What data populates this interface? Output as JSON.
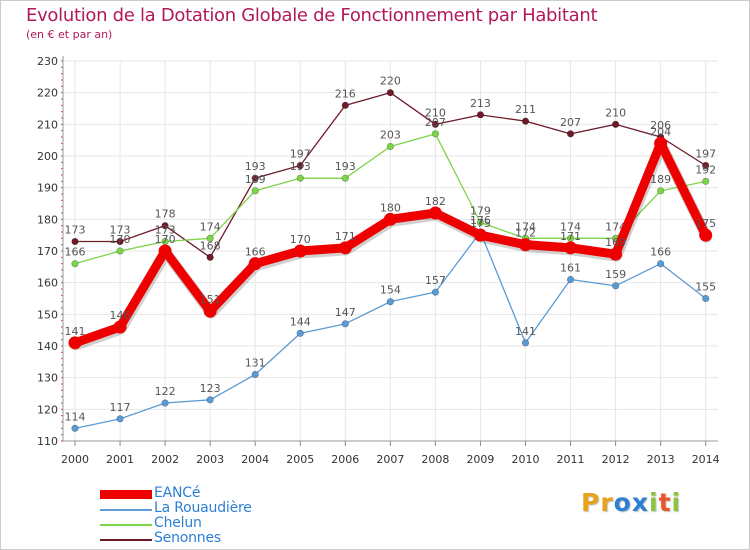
{
  "header": {
    "title": "Evolution de la Dotation Globale de Fonctionnement par Habitant",
    "subtitle": "(en € et par an)"
  },
  "colors": {
    "title": "#b0195a",
    "grid": "#e6e6e6",
    "axis_text": "#333333",
    "label_text": "#555555",
    "legend_text": "#2d7fd4"
  },
  "logo": {
    "letters": [
      "P",
      "r",
      "o",
      "x",
      "i",
      "t",
      "i"
    ],
    "colors": [
      "#e8a21b",
      "#e8a21b",
      "#2d7fd4",
      "#2d7fd4",
      "#8cc63f",
      "#e8562a",
      "#8cc63f"
    ]
  },
  "chart_data": {
    "type": "line",
    "title": "Evolution de la Dotation Globale de Fonctionnement par Habitant",
    "subtitle": "(en € et par an)",
    "xlabel": "",
    "ylabel": "",
    "x": [
      "2000",
      "2001",
      "2002",
      "2003",
      "2004",
      "2005",
      "2006",
      "2007",
      "2008",
      "2009",
      "2010",
      "2011",
      "2012",
      "2013",
      "2014"
    ],
    "ylim": [
      110,
      230
    ],
    "yticks": [
      "110",
      "120",
      "130",
      "140",
      "150",
      "160",
      "170",
      "180",
      "190",
      "200",
      "210",
      "220",
      "230"
    ],
    "grid": true,
    "legend_position": "bottom-left",
    "series": [
      {
        "name": "Senonnes",
        "color": "#6e1a28",
        "emphasis": false,
        "values": [
          173,
          173,
          178,
          168,
          193,
          197,
          216,
          220,
          210,
          213,
          211,
          207,
          210,
          206,
          197
        ],
        "labels": [
          "173",
          "173",
          "178",
          "168",
          "193",
          "197",
          "216",
          "220",
          "210",
          "213",
          "211",
          "207",
          "210",
          "206",
          "197"
        ]
      },
      {
        "name": "Chelun",
        "color": "#7dd44a",
        "emphasis": false,
        "values": [
          166,
          170,
          173,
          174,
          189,
          193,
          193,
          203,
          207,
          179,
          174,
          174,
          174,
          189,
          192
        ],
        "labels": [
          "166",
          "170",
          "173",
          "174",
          "189",
          "193",
          "193",
          "203",
          "207",
          "179",
          "174",
          "174",
          "174",
          "189",
          "192"
        ]
      },
      {
        "name": "La Rouaudière",
        "color": "#5b9bd5",
        "emphasis": false,
        "values": [
          114,
          117,
          122,
          123,
          131,
          144,
          147,
          154,
          157,
          176,
          141,
          161,
          159,
          166,
          155
        ],
        "labels": [
          "114",
          "117",
          "122",
          "123",
          "131",
          "144",
          "147",
          "154",
          "157",
          "176",
          "141",
          "161",
          "159",
          "166",
          "155"
        ]
      },
      {
        "name": "EANCé",
        "color": "#ee0000",
        "emphasis": true,
        "values": [
          141,
          146,
          170,
          151,
          166,
          170,
          171,
          180,
          182,
          175,
          172,
          171,
          169,
          204,
          175
        ],
        "labels": [
          "141",
          "146",
          "170",
          "151",
          "166",
          "170",
          "171",
          "180",
          "182",
          "175",
          "172",
          "171",
          "169",
          "204",
          "175"
        ]
      }
    ],
    "legend": [
      "EANCé",
      "La Rouaudière",
      "Chelun",
      "Senonnes"
    ]
  }
}
